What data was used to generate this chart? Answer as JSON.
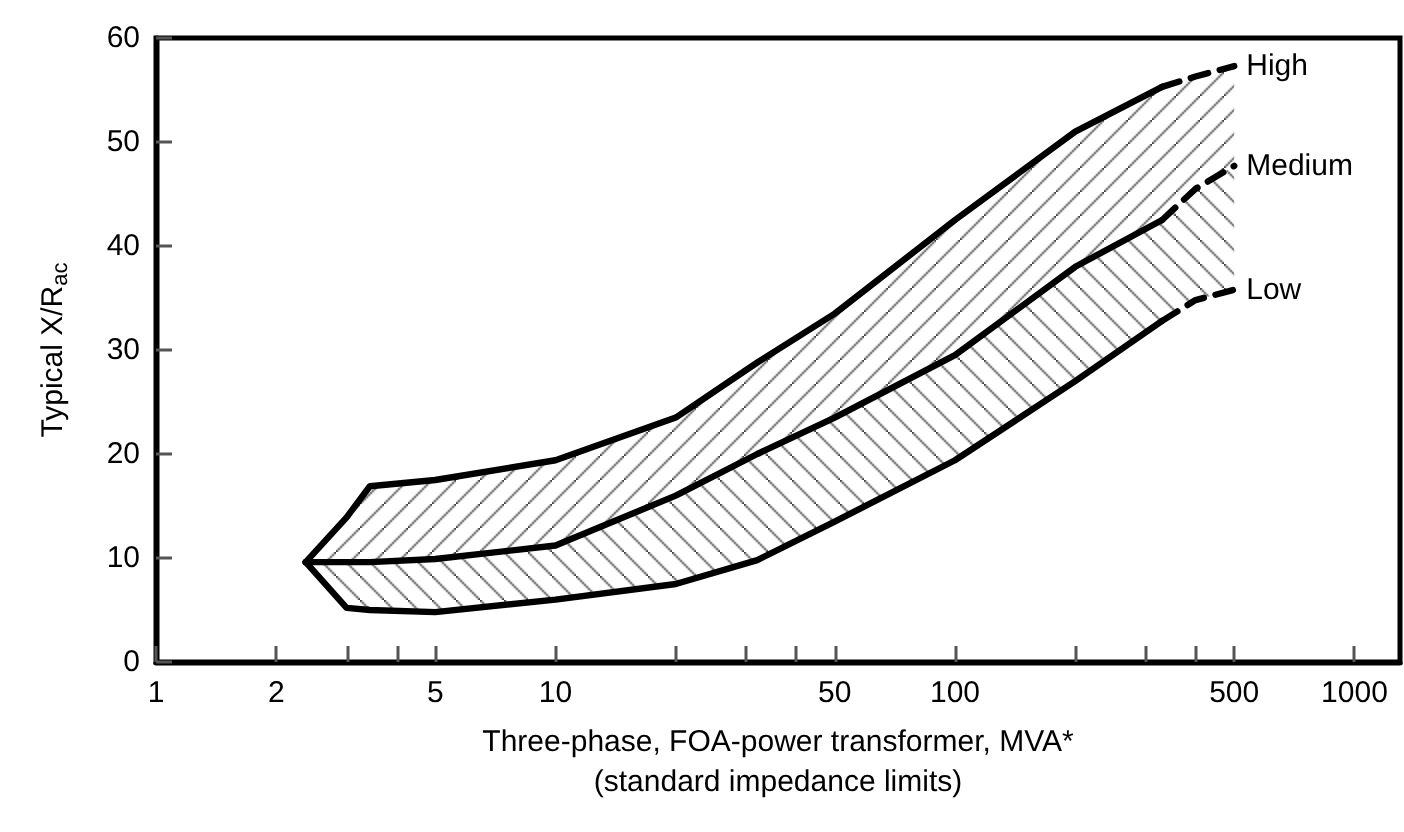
{
  "chart_data": {
    "type": "line",
    "xlabel": "Three-phase, FOA-power transformer, MVA*\n(standard impedance limits)",
    "ylabel": "Typical X/R$_{ac}$",
    "log": "x",
    "xlim": [
      1,
      1300
    ],
    "xticks": [
      1,
      2,
      {
        "value": 3,
        "label": null
      },
      {
        "value": 4,
        "label": null
      },
      5,
      10,
      {
        "value": 20,
        "label": null
      },
      {
        "value": 30,
        "label": null
      },
      {
        "value": 40,
        "label": null
      },
      50,
      100,
      {
        "value": 200,
        "label": null
      },
      {
        "value": 300,
        "label": null
      },
      {
        "value": 400,
        "label": null
      },
      500,
      1000
    ],
    "ylim": [
      0,
      60
    ],
    "yticks": [
      0,
      10,
      20,
      30,
      40,
      50,
      60
    ],
    "grid": false,
    "legend": false,
    "marker": "none",
    "series": [
      {
        "type": "line",
        "color": "#000000",
        "line_style": "solid",
        "x": [
          2.37,
          3,
          3.43,
          5,
          10,
          20,
          32,
          50,
          100,
          200,
          330
        ],
        "values": [
          9.6,
          13.9,
          16.9,
          17.5,
          19.4,
          23.5,
          28.8,
          33.5,
          42.5,
          51,
          55.3
        ],
        "lower": [
          9.6,
          9.6,
          9.6,
          9.9,
          11.2,
          16,
          20,
          23.5,
          29.5,
          38,
          42.5
        ],
        "upper": [
          9.6,
          13.9,
          16.9,
          17.5,
          19.4,
          23.5,
          28.8,
          33.5,
          42.5,
          51,
          55.3
        ]
      },
      {
        "type": "line",
        "name": "High",
        "color": "#000000",
        "line_style": "dashed",
        "x": [
          330,
          400,
          500
        ],
        "values": [
          55.3,
          56.3,
          57.3
        ],
        "lower": [
          42.5,
          45.5,
          47.7
        ],
        "upper": [
          55.3,
          56.3,
          57.3
        ]
      },
      {
        "type": "line",
        "color": "#000000",
        "line_style": "solid",
        "x": [
          2.37,
          3,
          3.43,
          5,
          10,
          20,
          32,
          50,
          100,
          200,
          330
        ],
        "values": [
          9.6,
          9.6,
          9.6,
          9.9,
          11.2,
          16,
          20,
          23.5,
          29.5,
          38,
          42.5
        ],
        "lower": [
          9.6,
          5.2,
          5.0,
          4.8,
          6,
          7.5,
          9.8,
          13.5,
          19.4,
          27,
          32.8
        ],
        "upper": [
          9.6,
          9.6,
          9.6,
          9.9,
          11.2,
          16,
          20,
          23.5,
          29.5,
          38,
          42.5
        ]
      },
      {
        "type": "line",
        "name": "Medium",
        "color": "#000000",
        "line_style": "dashed",
        "x": [
          330,
          400,
          500
        ],
        "values": [
          42.5,
          45.5,
          47.7
        ],
        "lower": [
          32.8,
          34.8,
          35.8
        ],
        "upper": [
          42.5,
          45.5,
          47.7
        ]
      },
      {
        "type": "line",
        "color": "#000000",
        "line_style": "solid",
        "x": [
          2.37,
          3,
          3.43,
          5,
          10,
          20,
          32,
          50,
          100,
          200,
          330
        ],
        "values": [
          9.6,
          5.2,
          5.0,
          4.8,
          6,
          7.5,
          9.8,
          13.5,
          19.4,
          27,
          32.8
        ]
      },
      {
        "type": "line",
        "name": "Low",
        "color": "#000000",
        "line_style": "dashed",
        "x": [
          330,
          400,
          500
        ],
        "values": [
          32.8,
          34.8,
          35.8
        ]
      }
    ]
  }
}
